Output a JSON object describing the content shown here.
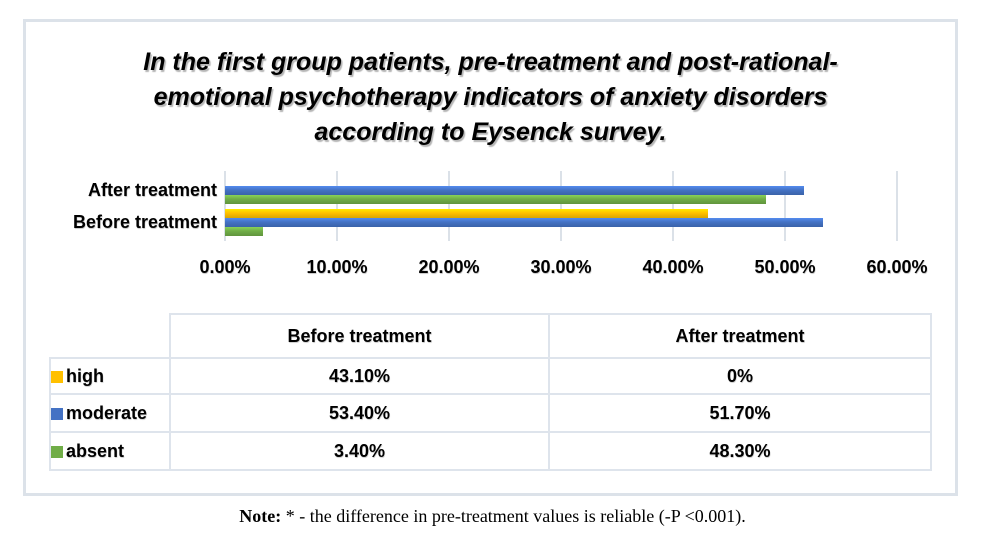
{
  "header": {
    "title_lines": [
      "In the first group patients, pre-treatment and post-rational-",
      "emotional psychotherapy indicators of anxiety disorders",
      "according to Eysenck survey."
    ]
  },
  "chart_data": {
    "type": "bar",
    "orientation": "horizontal",
    "title": "In the first group patients, pre-treatment and post-rational-emotional psychotherapy indicators of anxiety disorders according to Eysenck survey.",
    "categories": [
      "After treatment",
      "Before treatment"
    ],
    "series": [
      {
        "name": "high",
        "color": "#FFC000",
        "values": [
          0,
          43.1
        ]
      },
      {
        "name": "moderate",
        "color": "#4472C4",
        "values": [
          51.7,
          53.4
        ]
      },
      {
        "name": "absent",
        "color": "#70AD47",
        "values": [
          48.3,
          3.4
        ]
      }
    ],
    "xlim": [
      0,
      60
    ],
    "x_ticks": [
      {
        "value": 0,
        "label": "0.00%"
      },
      {
        "value": 10,
        "label": "10.00%"
      },
      {
        "value": 20,
        "label": "20.00%"
      },
      {
        "value": 30,
        "label": "30.00%"
      },
      {
        "value": 40,
        "label": "40.00%"
      },
      {
        "value": 50,
        "label": "50.00%"
      },
      {
        "value": 60,
        "label": "60.00%"
      }
    ],
    "grid": true,
    "legend_position": "table-below"
  },
  "table": {
    "headers": [
      "",
      "Before treatment",
      "After treatment"
    ],
    "rows": [
      {
        "label": "high",
        "color": "#FFC000",
        "before": "43.10%",
        "after": "0%"
      },
      {
        "label": "moderate",
        "color": "#4472C4",
        "before": "53.40%",
        "after": "51.70%"
      },
      {
        "label": "absent",
        "color": "#70AD47",
        "before": "3.40%",
        "after": "48.30%"
      }
    ]
  },
  "note": {
    "label": "Note:",
    "text": " * - the difference in pre-treatment values is reliable (-P <0.001)."
  }
}
